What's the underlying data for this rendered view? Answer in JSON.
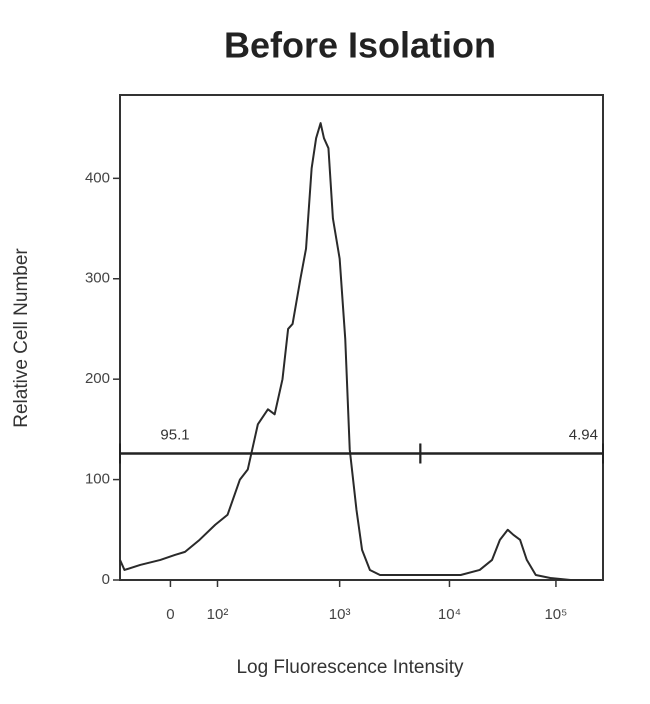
{
  "chart_data": {
    "type": "line",
    "title": "Before Isolation",
    "x_label": "Log Fluorescence Intensity",
    "y_label": "Relative Cell Number",
    "x": [
      1.04,
      1.08,
      1.22,
      1.4,
      1.53,
      1.62,
      1.75,
      1.89,
      2.0,
      2.11,
      2.18,
      2.27,
      2.36,
      2.42,
      2.49,
      2.54,
      2.58,
      2.65,
      2.7,
      2.75,
      2.79,
      2.83,
      2.86,
      2.9,
      2.94,
      3.0,
      3.05,
      3.09,
      3.15,
      3.2,
      3.27,
      3.36,
      3.54,
      3.81,
      4.08,
      4.25,
      4.36,
      4.43,
      4.5,
      4.55,
      4.61,
      4.67,
      4.75,
      4.88,
      5.06,
      5.33
    ],
    "series": [
      {
        "color": "#2a2a2a",
        "values": [
          20,
          10,
          15,
          20,
          25,
          28,
          40,
          55,
          65,
          100,
          110,
          155,
          170,
          165,
          200,
          250,
          255,
          300,
          330,
          410,
          440,
          455,
          440,
          430,
          360,
          320,
          240,
          130,
          70,
          30,
          10,
          5,
          5,
          5,
          5,
          10,
          20,
          40,
          50,
          45,
          40,
          20,
          5,
          2,
          0,
          0
        ]
      }
    ],
    "xlim": [
      1.04,
      5.35
    ],
    "ylim": [
      0,
      483
    ],
    "xticks": [
      {
        "value": 1.49,
        "label": "0"
      },
      {
        "value": 1.91,
        "label": "10²"
      },
      {
        "value": 3.0,
        "label": "10³"
      },
      {
        "value": 3.98,
        "label": "10⁴"
      },
      {
        "value": 4.93,
        "label": "10⁵"
      }
    ],
    "yticks": [
      0,
      100,
      200,
      300,
      400
    ],
    "gate_y": 126,
    "gates": [
      {
        "label": "95.1",
        "x": [
          1.04,
          3.72
        ]
      },
      {
        "label": "4.94",
        "x": [
          3.72,
          5.35
        ]
      }
    ]
  }
}
